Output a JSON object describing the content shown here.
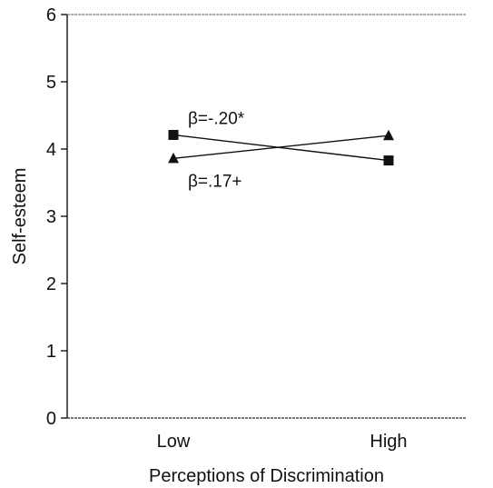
{
  "chart_data": {
    "type": "line",
    "xlabel": "Perceptions of Discrimination",
    "ylabel": "Self-esteem",
    "categories": [
      "Low",
      "High"
    ],
    "ylim": [
      0,
      6
    ],
    "yticks": [
      "0",
      "1",
      "2",
      "3",
      "4",
      "5",
      "6"
    ],
    "grid": false,
    "series": [
      {
        "values": [
          4.21,
          3.83
        ],
        "marker": "square",
        "annotation": "β=-.20*"
      },
      {
        "values": [
          3.86,
          4.2
        ],
        "marker": "triangle",
        "annotation": "β=.17+"
      }
    ]
  }
}
